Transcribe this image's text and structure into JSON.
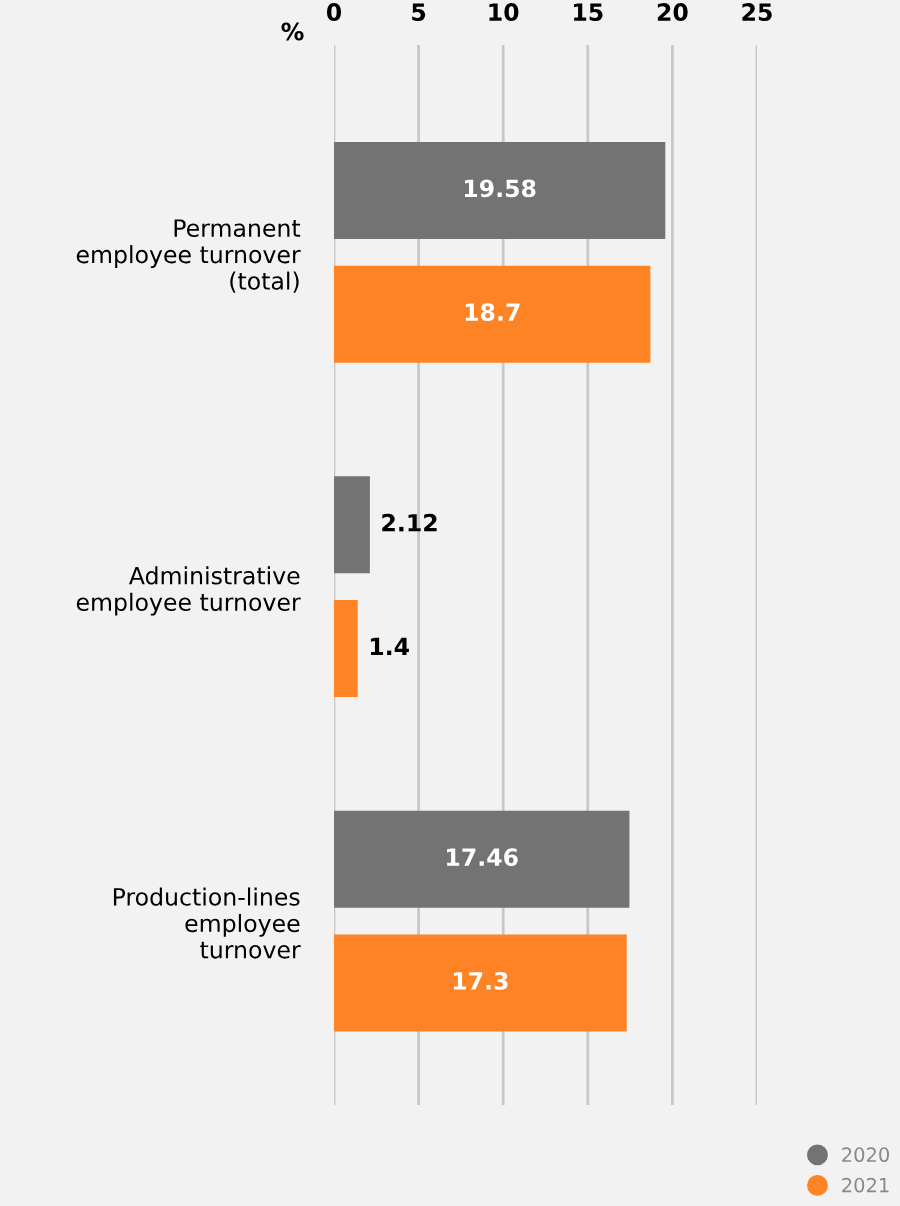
{
  "chart_data": {
    "type": "bar",
    "orientation": "horizontal",
    "xlabel": "%",
    "categories": [
      "Permanent\nemployee turnover\n(total)",
      "Administrative\nemployee turnover",
      "Production-lines\nemployee\nturnover"
    ],
    "series": [
      {
        "name": "2020",
        "color": "#737373",
        "values": [
          19.58,
          2.12,
          17.46
        ]
      },
      {
        "name": "2021",
        "color": "#fd8324",
        "values": [
          18.7,
          1.4,
          17.3
        ]
      }
    ],
    "xlim": [
      0,
      25
    ],
    "xticks": [
      0,
      5,
      10,
      15,
      20,
      25
    ],
    "grid": "x",
    "data_labels": true,
    "legend": "bottom right"
  }
}
